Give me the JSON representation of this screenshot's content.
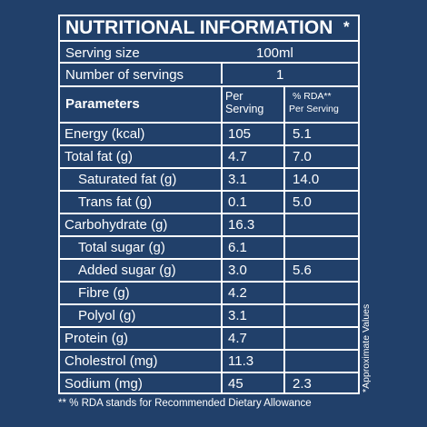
{
  "title": "NUTRITIONAL INFORMATION",
  "title_mark": "*",
  "serving": {
    "size_label": "Serving size",
    "size_value": "100ml",
    "count_label": "Number of servings",
    "count_value": "1"
  },
  "columns": {
    "parameters": "Parameters",
    "per_serving_line1": "Per",
    "per_serving_line2": "Serving",
    "rda_line1": "% RDA**",
    "rda_line2": "Per Serving"
  },
  "rows": [
    {
      "name": "Energy (kcal)",
      "per_serving": "105",
      "rda": "5.1"
    },
    {
      "name": "Total fat (g)",
      "per_serving": "4.7",
      "rda": "7.0"
    },
    {
      "name": "Saturated fat (g)",
      "per_serving": "3.1",
      "rda": "14.0"
    },
    {
      "name": "Trans fat (g)",
      "per_serving": "0.1",
      "rda": "5.0"
    },
    {
      "name": "Carbohydrate (g)",
      "per_serving": "16.3",
      "rda": ""
    },
    {
      "name": "Total sugar (g)",
      "per_serving": "6.1",
      "rda": ""
    },
    {
      "name": "Added sugar (g)",
      "per_serving": "3.0",
      "rda": "5.6"
    },
    {
      "name": "Fibre (g)",
      "per_serving": "4.2",
      "rda": ""
    },
    {
      "name": "Polyol (g)",
      "per_serving": "3.1",
      "rda": ""
    },
    {
      "name": "Protein (g)",
      "per_serving": "4.7",
      "rda": ""
    },
    {
      "name": "Cholestrol (mg)",
      "per_serving": "11.3",
      "rda": ""
    },
    {
      "name": "Sodium (mg)",
      "per_serving": "45",
      "rda": "2.3"
    }
  ],
  "side_note": "*Approximate Values",
  "footnote": "** % RDA stands for Recommended Dietary Allowance",
  "colors": {
    "background": "#21406a",
    "text": "#ffffff",
    "lines": "#ffffff"
  }
}
